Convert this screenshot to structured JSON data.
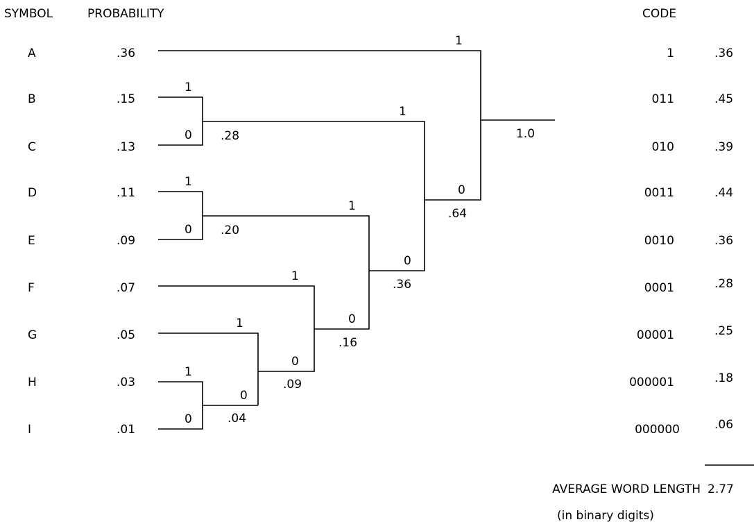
{
  "headers": {
    "symbol": "SYMBOL",
    "probability": "PROBABILITY",
    "code": "CODE"
  },
  "rows": [
    {
      "symbol": "A",
      "probability": ".36",
      "code": "1",
      "weighted": ".36"
    },
    {
      "symbol": "B",
      "probability": ".15",
      "code": "011",
      "weighted": ".45"
    },
    {
      "symbol": "C",
      "probability": ".13",
      "code": "010",
      "weighted": ".39"
    },
    {
      "symbol": "D",
      "probability": ".11",
      "code": "0011",
      "weighted": ".44"
    },
    {
      "symbol": "E",
      "probability": ".09",
      "code": "0010",
      "weighted": ".36"
    },
    {
      "symbol": "F",
      "probability": ".07",
      "code": "0001",
      "weighted": ".28"
    },
    {
      "symbol": "G",
      "probability": ".05",
      "code": "00001",
      "weighted": ".25"
    },
    {
      "symbol": "H",
      "probability": ".03",
      "code": "000001",
      "weighted": ".18"
    },
    {
      "symbol": "I",
      "probability": ".01",
      "code": "000000",
      "weighted": ".06"
    }
  ],
  "tree": {
    "node_bc": ".28",
    "node_de": ".20",
    "node_hi": ".04",
    "node_ghi": ".09",
    "node_fghi": ".16",
    "node_defghi": ".36",
    "node_bcdefghi": ".64",
    "root": "1.0",
    "bit_one": "1",
    "bit_zero": "0"
  },
  "summary": {
    "label": "AVERAGE WORD LENGTH",
    "value": "2.77",
    "unit_note": "(in binary digits)"
  }
}
